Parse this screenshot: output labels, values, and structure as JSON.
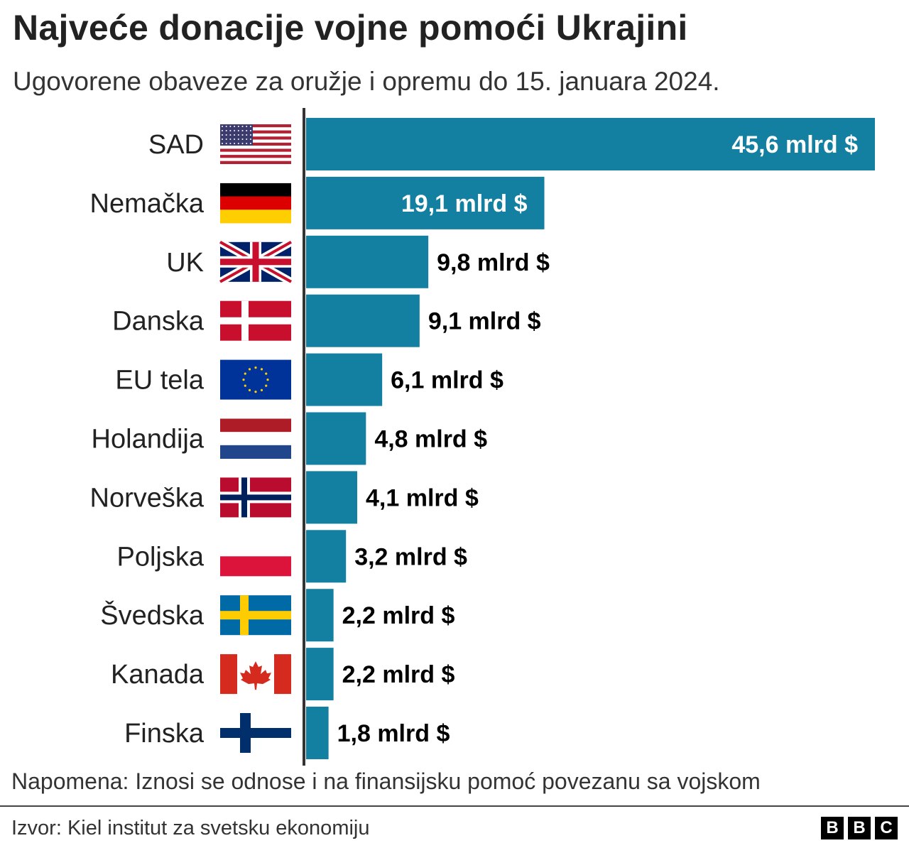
{
  "title": "Najveće donacije vojne pomoći Ukrajini",
  "subtitle": "Ugovorene obaveze za oružje i opremu do 15. januara 2024.",
  "note": "Napomena: Iznosi se odnose i na finansijsku pomoć povezanu sa vojskom",
  "source": "Izvor: Kiel institut za svetsku ekonomiju",
  "logo": [
    "B",
    "B",
    "C"
  ],
  "colors": {
    "bar": "#1380A1",
    "axis": "#333333"
  },
  "chart_data": {
    "type": "bar",
    "orientation": "horizontal",
    "categories": [
      "SAD",
      "Nemačka",
      "UK",
      "Danska",
      "EU tela",
      "Holandija",
      "Norveška",
      "Poljska",
      "Švedska",
      "Kanada",
      "Finska"
    ],
    "flags": [
      "us-flag-icon",
      "germany-flag-icon",
      "uk-flag-icon",
      "denmark-flag-icon",
      "eu-flag-icon",
      "netherlands-flag-icon",
      "norway-flag-icon",
      "poland-flag-icon",
      "sweden-flag-icon",
      "canada-flag-icon",
      "finland-flag-icon"
    ],
    "values": [
      45.6,
      19.1,
      9.8,
      9.1,
      6.1,
      4.8,
      4.1,
      3.2,
      2.2,
      2.2,
      1.8
    ],
    "labels": [
      "45,6 mlrd $",
      "19,1 mlrd $",
      "9,8 mlrd $",
      "9,1 mlrd $",
      "6,1 mlrd $",
      "4,8 mlrd $",
      "4,1 mlrd $",
      "3,2 mlrd $",
      "2,2 mlrd $",
      "2,2 mlrd $",
      "1,8 mlrd $"
    ],
    "unit": "mlrd $",
    "grid": false
  }
}
